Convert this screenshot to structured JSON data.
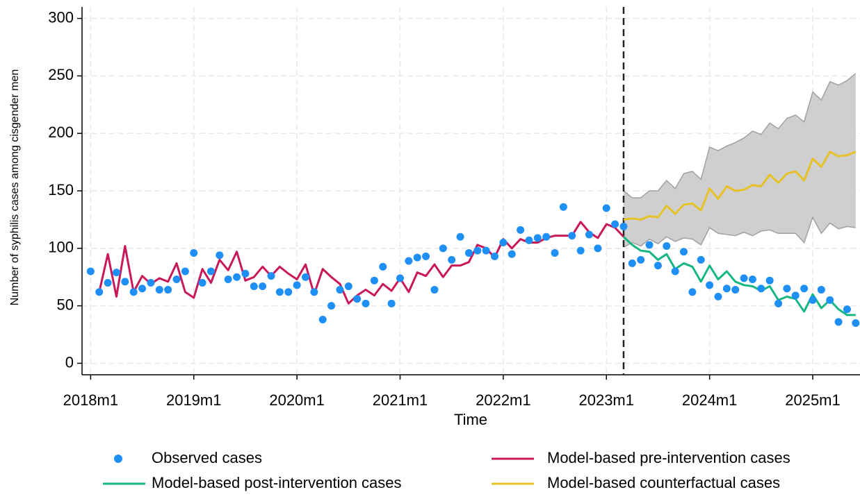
{
  "chart_data": {
    "type": "line",
    "x_label": "Time",
    "y_label": "Number of syphilis cases among cisgender men",
    "x": [
      696,
      697,
      698,
      699,
      700,
      701,
      702,
      703,
      704,
      705,
      706,
      707,
      708,
      709,
      710,
      711,
      712,
      713,
      714,
      715,
      716,
      717,
      718,
      719,
      720,
      721,
      722,
      723,
      724,
      725,
      726,
      727,
      728,
      729,
      730,
      731,
      732,
      733,
      734,
      735,
      736,
      737,
      738,
      739,
      740,
      741,
      742,
      743,
      744,
      745,
      746,
      747,
      748,
      749,
      750,
      751,
      752,
      753,
      754,
      755,
      756,
      757,
      758,
      759,
      760,
      761,
      762,
      763,
      764,
      765,
      766,
      767,
      768,
      769,
      770,
      771,
      772,
      773,
      774,
      775,
      776,
      777,
      778,
      779,
      780,
      781,
      782,
      783,
      784,
      785
    ],
    "xlim": [
      695,
      785.5
    ],
    "xticks": [
      {
        "value": 696,
        "label": "2018m1"
      },
      {
        "value": 708,
        "label": "2019m1"
      },
      {
        "value": 720,
        "label": "2020m1"
      },
      {
        "value": 732,
        "label": "2021m1"
      },
      {
        "value": 744,
        "label": "2022m1"
      },
      {
        "value": 756,
        "label": "2023m1"
      },
      {
        "value": 768,
        "label": "2024m1"
      },
      {
        "value": 780,
        "label": "2025m1"
      }
    ],
    "ylim": [
      -10,
      310
    ],
    "yticks": [
      0,
      50,
      100,
      150,
      200,
      250,
      300
    ],
    "grid": true,
    "vline": 758,
    "band": {
      "color": "#cfcfcf",
      "edge_color": "#a0a0a0",
      "lower": [
        null,
        null,
        null,
        null,
        null,
        null,
        null,
        null,
        null,
        null,
        null,
        null,
        null,
        null,
        null,
        null,
        null,
        null,
        null,
        null,
        null,
        null,
        null,
        null,
        null,
        null,
        null,
        null,
        null,
        null,
        null,
        null,
        null,
        null,
        null,
        null,
        null,
        null,
        null,
        null,
        null,
        null,
        null,
        null,
        null,
        null,
        null,
        null,
        null,
        null,
        null,
        null,
        null,
        null,
        null,
        null,
        null,
        null,
        null,
        null,
        null,
        null,
        101,
        105,
        102,
        108,
        104,
        110,
        106,
        109,
        108,
        103,
        118,
        113,
        112,
        111,
        114,
        111,
        115,
        116,
        113,
        113,
        113,
        105,
        127,
        113,
        122,
        117,
        119,
        118
      ],
      "upper": [
        null,
        null,
        null,
        null,
        null,
        null,
        null,
        null,
        null,
        null,
        null,
        null,
        null,
        null,
        null,
        null,
        null,
        null,
        null,
        null,
        null,
        null,
        null,
        null,
        null,
        null,
        null,
        null,
        null,
        null,
        null,
        null,
        null,
        null,
        null,
        null,
        null,
        null,
        null,
        null,
        null,
        null,
        null,
        null,
        null,
        null,
        null,
        null,
        null,
        null,
        null,
        null,
        null,
        null,
        null,
        null,
        null,
        null,
        null,
        null,
        null,
        null,
        150,
        144,
        144,
        150,
        150,
        159,
        152,
        165,
        167,
        160,
        188,
        185,
        189,
        192,
        196,
        202,
        199,
        209,
        204,
        213,
        216,
        210,
        236,
        229,
        245,
        242,
        246,
        252
      ]
    },
    "series": [
      {
        "name": "Observed cases",
        "style": "scatter",
        "color": "#1e8ff5",
        "values": [
          80,
          62,
          70,
          79,
          71,
          62,
          65,
          70,
          64,
          64,
          73,
          80,
          96,
          70,
          80,
          94,
          73,
          75,
          78,
          67,
          67,
          76,
          62,
          62,
          68,
          75,
          62,
          38,
          50,
          64,
          67,
          56,
          52,
          72,
          84,
          52,
          74,
          89,
          92,
          93,
          64,
          100,
          90,
          110,
          96,
          98,
          98,
          93,
          105,
          95,
          116,
          107,
          109,
          110,
          96,
          136,
          111,
          98,
          112,
          100,
          135,
          121,
          119,
          87,
          90,
          103,
          85,
          102,
          80,
          97,
          62,
          90,
          68,
          58,
          65,
          64,
          74,
          73,
          65,
          72,
          52,
          65,
          59,
          65,
          55,
          64,
          55,
          36,
          47,
          35
        ]
      },
      {
        "name": "Model-based pre-intervention cases",
        "style": "line",
        "color": "#c8185a",
        "values": [
          null,
          62,
          95,
          58,
          102,
          62,
          76,
          69,
          74,
          71,
          87,
          62,
          57,
          82,
          70,
          90,
          81,
          97,
          72,
          75,
          84,
          76,
          84,
          78,
          73,
          86,
          60,
          82,
          75,
          69,
          52,
          59,
          64,
          59,
          69,
          63,
          74,
          62,
          79,
          76,
          86,
          75,
          85,
          85,
          88,
          103,
          100,
          92,
          108,
          100,
          108,
          105,
          105,
          109,
          111,
          111,
          111,
          123,
          114,
          109,
          121,
          118,
          110,
          null,
          null,
          null,
          null,
          null,
          null,
          null,
          null,
          null,
          null,
          null,
          null,
          null,
          null,
          null,
          null,
          null,
          null,
          null,
          null,
          null,
          null,
          null,
          null,
          null,
          null,
          null
        ]
      },
      {
        "name": "Model-based post-intervention cases",
        "style": "line",
        "color": "#16b585",
        "values": [
          null,
          null,
          null,
          null,
          null,
          null,
          null,
          null,
          null,
          null,
          null,
          null,
          null,
          null,
          null,
          null,
          null,
          null,
          null,
          null,
          null,
          null,
          null,
          null,
          null,
          null,
          null,
          null,
          null,
          null,
          null,
          null,
          null,
          null,
          null,
          null,
          null,
          null,
          null,
          null,
          null,
          null,
          null,
          null,
          null,
          null,
          null,
          null,
          null,
          null,
          null,
          null,
          null,
          null,
          null,
          null,
          null,
          null,
          null,
          null,
          null,
          null,
          110,
          103,
          98,
          97,
          90,
          95,
          82,
          87,
          84,
          71,
          85,
          73,
          80,
          71,
          68,
          67,
          63,
          67,
          55,
          58,
          56,
          45,
          60,
          48,
          55,
          47,
          42,
          42
        ]
      },
      {
        "name": "Model-based counterfactual cases",
        "style": "line",
        "color": "#e6c228",
        "values": [
          null,
          null,
          null,
          null,
          null,
          null,
          null,
          null,
          null,
          null,
          null,
          null,
          null,
          null,
          null,
          null,
          null,
          null,
          null,
          null,
          null,
          null,
          null,
          null,
          null,
          null,
          null,
          null,
          null,
          null,
          null,
          null,
          null,
          null,
          null,
          null,
          null,
          null,
          null,
          null,
          null,
          null,
          null,
          null,
          null,
          null,
          null,
          null,
          null,
          null,
          null,
          null,
          null,
          null,
          null,
          null,
          null,
          null,
          null,
          null,
          null,
          null,
          125,
          126,
          125,
          128,
          127,
          137,
          130,
          138,
          139,
          133,
          152,
          143,
          154,
          150,
          151,
          155,
          154,
          164,
          157,
          165,
          167,
          159,
          178,
          171,
          184,
          180,
          181,
          184
        ]
      }
    ]
  }
}
